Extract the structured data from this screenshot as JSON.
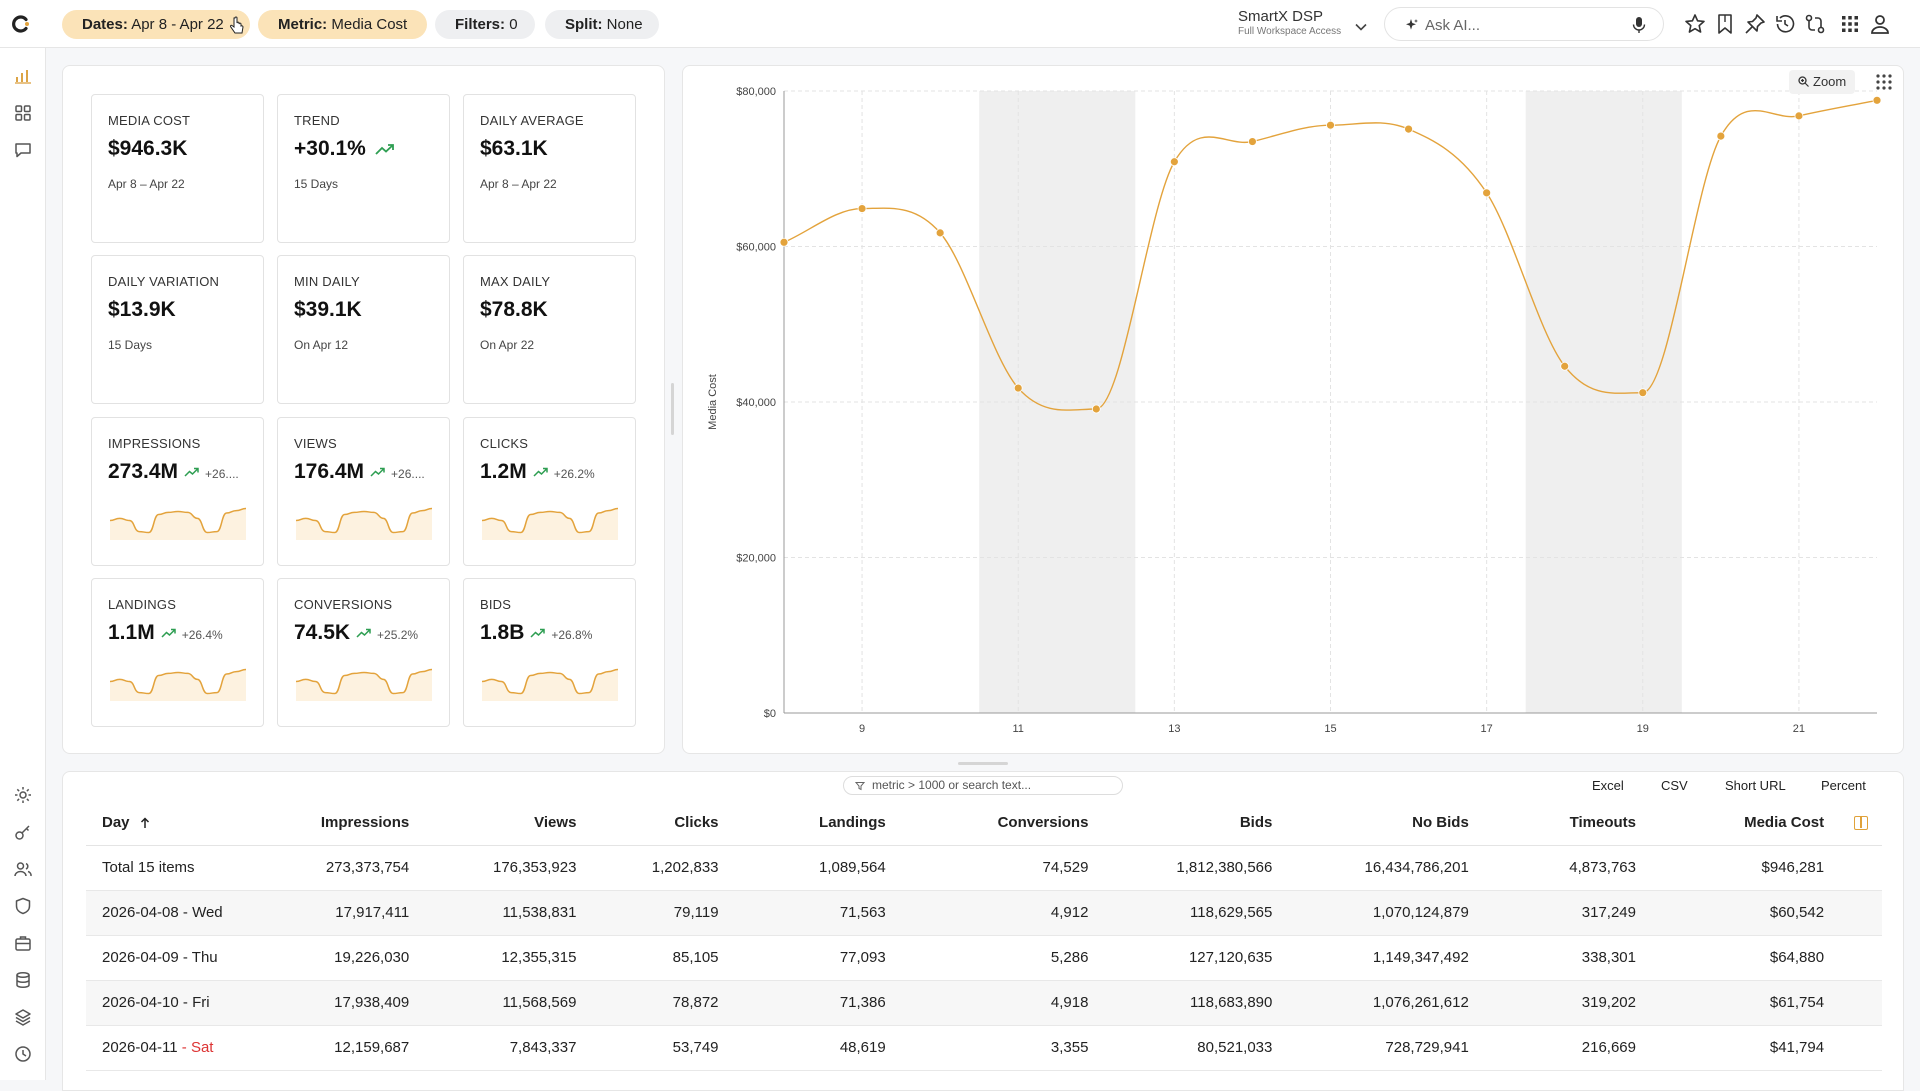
{
  "topbar": {
    "chips": [
      {
        "key": "Dates:",
        "value": "Apr 8 - Apr 22"
      },
      {
        "key": "Metric:",
        "value": "Media Cost"
      },
      {
        "key": "Filters:",
        "value": "0"
      },
      {
        "key": "Split:",
        "value": "None"
      }
    ],
    "account": {
      "name": "SmartX DSP",
      "access": "Full Workspace Access"
    },
    "ask_placeholder": "Ask AI..."
  },
  "kpis": [
    {
      "label": "MEDIA COST",
      "value": "$946.3K",
      "sub": "Apr 8 – Apr 22"
    },
    {
      "label": "TREND",
      "value": "+30.1%",
      "sub": "15 Days"
    },
    {
      "label": "DAILY AVERAGE",
      "value": "$63.1K",
      "sub": "Apr 8 – Apr 22"
    },
    {
      "label": "DAILY VARIATION",
      "value": "$13.9K",
      "sub": "15 Days"
    },
    {
      "label": "MIN DAILY",
      "value": "$39.1K",
      "sub": "On Apr 12"
    },
    {
      "label": "MAX DAILY",
      "value": "$78.8K",
      "sub": "On Apr 22"
    },
    {
      "label": "IMPRESSIONS",
      "value": "273.4M",
      "change": "+26...."
    },
    {
      "label": "VIEWS",
      "value": "176.4M",
      "change": "+26...."
    },
    {
      "label": "CLICKS",
      "value": "1.2M",
      "change": "+26.2%"
    },
    {
      "label": "LANDINGS",
      "value": "1.1M",
      "change": "+26.4%"
    },
    {
      "label": "CONVERSIONS",
      "value": "74.5K",
      "change": "+25.2%"
    },
    {
      "label": "BIDS",
      "value": "1.8B",
      "change": "+26.8%"
    }
  ],
  "chart_zoom_label": "Zoom",
  "chart_data": {
    "type": "line",
    "ylabel": "Media Cost",
    "xlabel": "",
    "x": [
      8,
      9,
      10,
      11,
      12,
      13,
      14,
      15,
      16,
      17,
      18,
      19,
      20,
      21,
      22
    ],
    "values": [
      60542,
      64880,
      61754,
      41794,
      39100,
      70900,
      73500,
      75600,
      75100,
      66900,
      44600,
      41200,
      74200,
      76800,
      78800
    ],
    "ylim": [
      0,
      80000
    ],
    "xlim": [
      8,
      22
    ],
    "yticks": [
      "$0",
      "$20,000",
      "$40,000",
      "$60,000",
      "$80,000"
    ],
    "ytick_values": [
      0,
      20000,
      40000,
      60000,
      80000
    ],
    "xticks": [
      9,
      11,
      13,
      15,
      17,
      19,
      21
    ],
    "weekend_bands": [
      [
        10.5,
        12.5
      ],
      [
        17.5,
        19.5
      ]
    ],
    "line_color": "#e3a33c",
    "grid": true
  },
  "table": {
    "search_placeholder": "metric > 1000 or search text...",
    "actions": [
      "Excel",
      "CSV",
      "Short URL",
      "Percent"
    ],
    "columns": [
      "Day",
      "Impressions",
      "Views",
      "Clicks",
      "Landings",
      "Conversions",
      "Bids",
      "No Bids",
      "Timeouts",
      "Media Cost"
    ],
    "rows": [
      {
        "day": "Total 15 items",
        "dow": "",
        "weekend": false,
        "cells": [
          "273,373,754",
          "176,353,923",
          "1,202,833",
          "1,089,564",
          "74,529",
          "1,812,380,566",
          "16,434,786,201",
          "4,873,763",
          "$946,281"
        ]
      },
      {
        "day": "2026-04-08",
        "dow": "Wed",
        "weekend": false,
        "cells": [
          "17,917,411",
          "11,538,831",
          "79,119",
          "71,563",
          "4,912",
          "118,629,565",
          "1,070,124,879",
          "317,249",
          "$60,542"
        ]
      },
      {
        "day": "2026-04-09",
        "dow": "Thu",
        "weekend": false,
        "cells": [
          "19,226,030",
          "12,355,315",
          "85,105",
          "77,093",
          "5,286",
          "127,120,635",
          "1,149,347,492",
          "338,301",
          "$64,880"
        ]
      },
      {
        "day": "2026-04-10",
        "dow": "Fri",
        "weekend": false,
        "cells": [
          "17,938,409",
          "11,568,569",
          "78,872",
          "71,386",
          "4,918",
          "118,683,890",
          "1,076,261,612",
          "319,202",
          "$61,754"
        ]
      },
      {
        "day": "2026-04-11",
        "dow": "Sat",
        "weekend": true,
        "cells": [
          "12,159,687",
          "7,843,337",
          "53,749",
          "48,619",
          "3,355",
          "80,521,033",
          "728,729,941",
          "216,669",
          "$41,794"
        ]
      }
    ]
  }
}
